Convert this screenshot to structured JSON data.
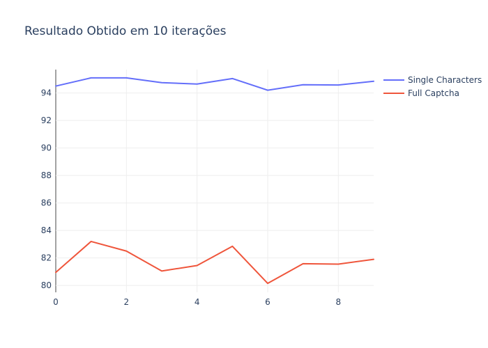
{
  "chart_data": {
    "type": "line",
    "title": "Resultado Obtido em 10 iterações",
    "xlabel": "",
    "ylabel": "",
    "x": [
      0,
      1,
      2,
      3,
      4,
      5,
      6,
      7,
      8,
      9
    ],
    "xlim": [
      0,
      9
    ],
    "ylim": [
      79.5,
      95.7
    ],
    "x_ticks": [
      0,
      2,
      4,
      6,
      8
    ],
    "y_ticks": [
      80,
      82,
      84,
      86,
      88,
      90,
      92,
      94
    ],
    "grid": true,
    "legend_position": "top-right",
    "series": [
      {
        "name": "Single Characters",
        "color": "#636efa",
        "values": [
          94.5,
          95.1,
          95.1,
          94.75,
          94.65,
          95.05,
          94.2,
          94.6,
          94.58,
          94.85
        ]
      },
      {
        "name": "Full Captcha",
        "color": "#ef553b",
        "values": [
          80.95,
          83.2,
          82.5,
          81.05,
          81.45,
          82.85,
          80.15,
          81.58,
          81.55,
          81.9
        ]
      }
    ]
  }
}
